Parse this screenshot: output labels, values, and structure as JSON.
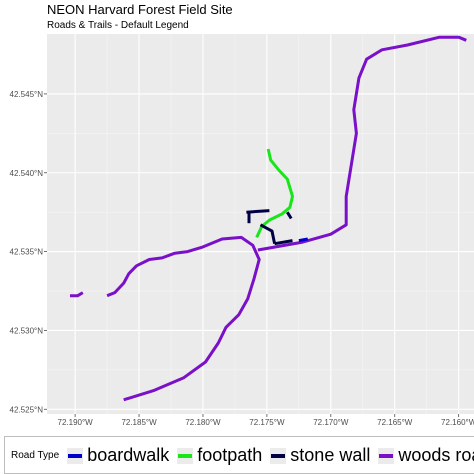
{
  "title": "NEON Harvard Forest Field Site",
  "subtitle": "Roads & Trails - Default Legend",
  "legend": {
    "title": "Road Type",
    "items": [
      {
        "label": "boardwalk",
        "color": "#0000cc"
      },
      {
        "label": "footpath",
        "color": "#19e619"
      },
      {
        "label": "stone wall",
        "color": "#000044"
      },
      {
        "label": "woods road",
        "color": "#7a10c8"
      }
    ]
  },
  "chart_data": {
    "type": "map",
    "xlim": [
      -72.1922,
      -72.1588
    ],
    "ylim": [
      42.5247,
      42.5488
    ],
    "x_ticks": [
      -72.19,
      -72.185,
      -72.18,
      -72.175,
      -72.17,
      -72.165,
      -72.16
    ],
    "x_tick_labels": [
      "72.190°W",
      "72.185°W",
      "72.180°W",
      "72.175°W",
      "72.170°W",
      "72.165°W",
      "72.160°W"
    ],
    "y_ticks": [
      42.525,
      42.53,
      42.535,
      42.54,
      42.545
    ],
    "y_tick_labels": [
      "42.525°N",
      "42.530°N",
      "42.535°N",
      "42.540°N",
      "42.545°N"
    ],
    "grid": true,
    "background": "#ebebeb",
    "series": [
      {
        "type": "woods road",
        "lines": [
          [
            [
              -72.1862,
              42.5256
            ],
            [
              -72.1838,
              42.5262
            ],
            [
              -72.1815,
              42.527
            ],
            [
              -72.1798,
              42.528
            ],
            [
              -72.1788,
              42.5292
            ],
            [
              -72.1782,
              42.5302
            ],
            [
              -72.1772,
              42.531
            ],
            [
              -72.1765,
              42.532
            ],
            [
              -72.176,
              42.5333
            ],
            [
              -72.1756,
              42.5345
            ],
            [
              -72.1761,
              42.5354
            ],
            [
              -72.177,
              42.5359
            ],
            [
              -72.1785,
              42.5358
            ],
            [
              -72.18,
              42.5353
            ],
            [
              -72.1812,
              42.535
            ],
            [
              -72.1822,
              42.5349
            ],
            [
              -72.1832,
              42.5346
            ],
            [
              -72.1842,
              42.5345
            ],
            [
              -72.1852,
              42.5341
            ],
            [
              -72.1858,
              42.5336
            ],
            [
              -72.1862,
              42.533
            ],
            [
              -72.1869,
              42.5324
            ],
            [
              -72.1875,
              42.5322
            ]
          ],
          [
            [
              -72.1904,
              42.5322
            ],
            [
              -72.1898,
              42.5322
            ],
            [
              -72.1894,
              42.5324
            ]
          ],
          [
            [
              -72.1757,
              42.5351
            ],
            [
              -72.1722,
              42.5356
            ],
            [
              -72.17,
              42.5361
            ],
            [
              -72.1688,
              42.5367
            ],
            [
              -72.1688,
              42.5385
            ],
            [
              -72.1684,
              42.5405
            ],
            [
              -72.168,
              42.5425
            ],
            [
              -72.1682,
              42.544
            ],
            [
              -72.1678,
              42.546
            ],
            [
              -72.1672,
              42.5472
            ],
            [
              -72.166,
              42.5478
            ],
            [
              -72.164,
              42.5481
            ],
            [
              -72.1615,
              42.5486
            ],
            [
              -72.16,
              42.5486
            ],
            [
              -72.1594,
              42.5484
            ]
          ]
        ]
      },
      {
        "type": "footpath",
        "lines": [
          [
            [
              -72.1749,
              42.5415
            ],
            [
              -72.1747,
              42.5408
            ],
            [
              -72.1741,
              42.5402
            ],
            [
              -72.1734,
              42.5396
            ],
            [
              -72.173,
              42.5385
            ],
            [
              -72.1732,
              42.5378
            ],
            [
              -72.1738,
              42.5374
            ],
            [
              -72.1748,
              42.537
            ],
            [
              -72.1754,
              42.5366
            ],
            [
              -72.1758,
              42.5359
            ]
          ]
        ]
      },
      {
        "type": "stone wall",
        "lines": [
          [
            [
              -72.1766,
              42.5375
            ],
            [
              -72.1748,
              42.5376
            ]
          ],
          [
            [
              -72.1764,
              42.5375
            ],
            [
              -72.1764,
              42.5368
            ]
          ],
          [
            [
              -72.1755,
              42.5367
            ],
            [
              -72.1746,
              42.5363
            ],
            [
              -72.1744,
              42.5355
            ]
          ],
          [
            [
              -72.1744,
              42.5355
            ],
            [
              -72.173,
              42.5357
            ]
          ],
          [
            [
              -72.1734,
              42.5375
            ],
            [
              -72.1731,
              42.5371
            ]
          ]
        ]
      },
      {
        "type": "boardwalk",
        "lines": [
          [
            [
              -72.1725,
              42.5357
            ],
            [
              -72.1718,
              42.5358
            ]
          ]
        ]
      }
    ]
  }
}
